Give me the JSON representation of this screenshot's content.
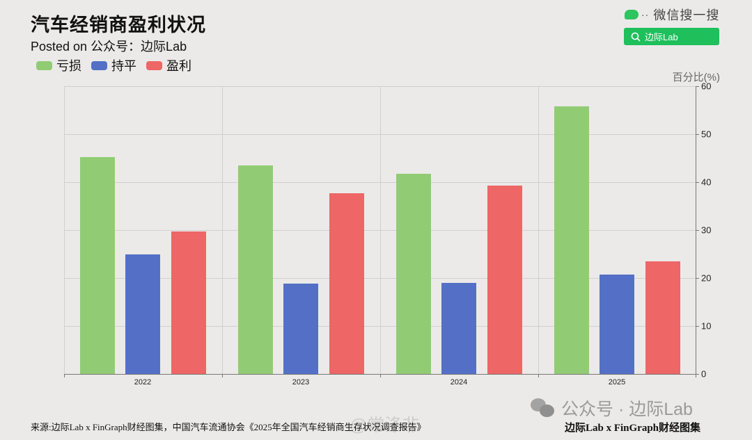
{
  "header": {
    "title": "汽车经销商盈利状况",
    "subtitle": "Posted on 公众号：边际Lab"
  },
  "wechat": {
    "label": "微信搜一搜",
    "search_text": "边际Lab",
    "icon": "wechat-icon",
    "search_icon": "search-icon",
    "accent": "#1fbf5c"
  },
  "legend": [
    {
      "label": "亏损",
      "color": "#91cc75"
    },
    {
      "label": "持平",
      "color": "#5470c6"
    },
    {
      "label": "盈利",
      "color": "#ee6666"
    }
  ],
  "axis": {
    "ylabel": "百分比(%)",
    "yticks": [
      "0",
      "10",
      "20",
      "30",
      "40",
      "50",
      "60"
    ],
    "xticks": [
      "2022",
      "2023",
      "2024",
      "2025"
    ]
  },
  "footer": {
    "source": "来源:边际Lab x FinGraph财经图集，中国汽车流通协会《2025年全国汽车经销商生存状况调查报告》",
    "credit": "边际Lab x FinGraph财经图集",
    "watermark_account": "公众号 · 边际Lab",
    "watermark_weibo": "@常涤非"
  },
  "chart_data": {
    "type": "bar",
    "title": "汽车经销商盈利状况",
    "subtitle": "Posted on 公众号：边际Lab",
    "categories": [
      "2022",
      "2023",
      "2024",
      "2025"
    ],
    "series": [
      {
        "name": "亏损",
        "color": "#91cc75",
        "values": [
          45.2,
          43.5,
          41.7,
          55.8
        ]
      },
      {
        "name": "持平",
        "color": "#5470c6",
        "values": [
          24.9,
          18.8,
          19.0,
          20.7
        ]
      },
      {
        "name": "盈利",
        "color": "#ee6666",
        "values": [
          29.7,
          37.7,
          39.3,
          23.5
        ]
      }
    ],
    "xlabel": "",
    "ylabel": "百分比(%)",
    "ylim": [
      0,
      60
    ],
    "yticks": [
      0,
      10,
      20,
      30,
      40,
      50,
      60
    ],
    "y_axis_position": "right",
    "grid": true,
    "legend_position": "top-left"
  }
}
